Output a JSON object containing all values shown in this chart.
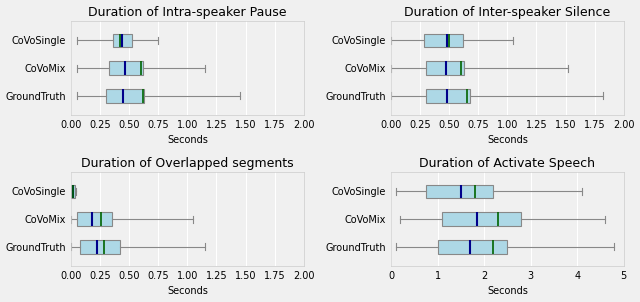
{
  "plots": [
    {
      "title": "Duration of Intra-speaker Pause",
      "xlabel": "Seconds",
      "xlim": [
        0.0,
        2.0
      ],
      "xticks": [
        0.0,
        0.25,
        0.5,
        0.75,
        1.0,
        1.25,
        1.5,
        1.75,
        2.0
      ],
      "xticklabels": [
        "0.00",
        "0.25",
        "0.50",
        "0.75",
        "1.00",
        "1.25",
        "1.50",
        "1.75",
        "2.00"
      ],
      "categories": [
        "CoVoSingle",
        "CoVoMix",
        "GroundTruth"
      ],
      "boxes": [
        {
          "q1": 0.36,
          "median": 0.44,
          "q3": 0.52,
          "whislo": 0.05,
          "whishi": 0.75,
          "mean": 0.42
        },
        {
          "q1": 0.33,
          "median": 0.46,
          "q3": 0.62,
          "whislo": 0.05,
          "whishi": 1.15,
          "mean": 0.6
        },
        {
          "q1": 0.3,
          "median": 0.45,
          "q3": 0.63,
          "whislo": 0.05,
          "whishi": 1.45,
          "mean": 0.62
        }
      ]
    },
    {
      "title": "Duration of Inter-speaker Silence",
      "xlabel": "Seconds",
      "xlim": [
        0.0,
        2.0
      ],
      "xticks": [
        0.0,
        0.25,
        0.5,
        0.75,
        1.0,
        1.25,
        1.5,
        1.75,
        2.0
      ],
      "xticklabels": [
        "0.00",
        "0.25",
        "0.50",
        "0.75",
        "1.00",
        "1.25",
        "1.50",
        "1.75",
        "2.00"
      ],
      "categories": [
        "CoVoSingle",
        "CoVoMix",
        "GroundTruth"
      ],
      "boxes": [
        {
          "q1": 0.28,
          "median": 0.48,
          "q3": 0.62,
          "whislo": 0.0,
          "whishi": 1.05,
          "mean": 0.5
        },
        {
          "q1": 0.3,
          "median": 0.47,
          "q3": 0.63,
          "whislo": 0.0,
          "whishi": 1.52,
          "mean": 0.6
        },
        {
          "q1": 0.3,
          "median": 0.48,
          "q3": 0.68,
          "whislo": 0.0,
          "whishi": 1.82,
          "mean": 0.65
        }
      ]
    },
    {
      "title": "Duration of Overlapped segments",
      "xlabel": "Seconds",
      "xlim": [
        0.0,
        2.0
      ],
      "xticks": [
        0.0,
        0.25,
        0.5,
        0.75,
        1.0,
        1.25,
        1.5,
        1.75,
        2.0
      ],
      "xticklabels": [
        "0.00",
        "0.25",
        "0.50",
        "0.75",
        "1.00",
        "1.25",
        "1.50",
        "1.75",
        "2.00"
      ],
      "categories": [
        "CoVoSingle",
        "CoVoMix",
        "GroundTruth"
      ],
      "boxes": [
        {
          "q1": 0.0,
          "median": 0.02,
          "q3": 0.03,
          "whislo": 0.0,
          "whishi": 0.04,
          "mean": 0.02
        },
        {
          "q1": 0.05,
          "median": 0.18,
          "q3": 0.35,
          "whislo": 0.0,
          "whishi": 1.05,
          "mean": 0.26
        },
        {
          "q1": 0.08,
          "median": 0.22,
          "q3": 0.42,
          "whislo": 0.0,
          "whishi": 1.15,
          "mean": 0.28
        }
      ]
    },
    {
      "title": "Duration of Activate Speech",
      "xlabel": "Seconds",
      "xlim": [
        0,
        5
      ],
      "xticks": [
        0,
        1,
        2,
        3,
        4,
        5
      ],
      "xticklabels": [
        "0",
        "1",
        "2",
        "3",
        "4",
        "5"
      ],
      "categories": [
        "CoVoSingle",
        "CoVoMix",
        "GroundTruth"
      ],
      "boxes": [
        {
          "q1": 0.75,
          "median": 1.5,
          "q3": 2.2,
          "whislo": 0.1,
          "whishi": 4.1,
          "mean": 1.8
        },
        {
          "q1": 1.1,
          "median": 1.85,
          "q3": 2.8,
          "whislo": 0.2,
          "whishi": 4.6,
          "mean": 2.3
        },
        {
          "q1": 1.0,
          "median": 1.7,
          "q3": 2.5,
          "whislo": 0.1,
          "whishi": 4.8,
          "mean": 2.2
        }
      ]
    }
  ],
  "box_facecolor": "#add8e6",
  "box_edgecolor": "#888888",
  "median_color": "#00008b",
  "mean_color": "#006400",
  "whisker_color": "#888888",
  "cap_color": "#888888",
  "bg_color": "#f0f0f0",
  "title_fontsize": 9,
  "label_fontsize": 7,
  "tick_fontsize": 7
}
